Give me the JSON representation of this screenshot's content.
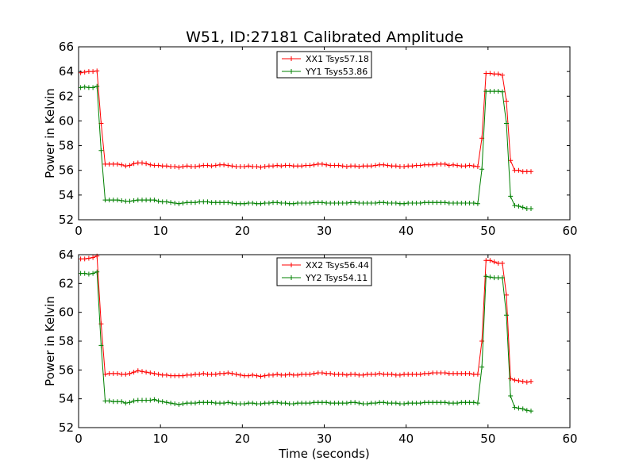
{
  "title": "W51, ID:27181 Calibrated Amplitude",
  "chart_data": [
    {
      "type": "line",
      "ylabel": "Power in Kelvin",
      "xlabel": "",
      "xlim": [
        0,
        60
      ],
      "ylim": [
        52,
        66
      ],
      "xticks": [
        "0",
        "10",
        "20",
        "30",
        "40",
        "50",
        "60"
      ],
      "yticks": [
        "52",
        "54",
        "56",
        "58",
        "60",
        "62",
        "64",
        "66"
      ],
      "legend_position": "top-center",
      "series": [
        {
          "name": "XX1 Tsys57.18",
          "color": "#ff0000",
          "x": [
            0.25,
            0.75,
            1.25,
            1.75,
            2.25,
            2.75,
            3.25,
            3.75,
            4.25,
            4.75,
            5.25,
            5.75,
            6.25,
            6.75,
            7.25,
            7.75,
            8.25,
            8.75,
            9.25,
            9.75,
            10.25,
            10.75,
            11.25,
            11.75,
            12.25,
            12.75,
            13.25,
            13.75,
            14.25,
            14.75,
            15.25,
            15.75,
            16.25,
            16.75,
            17.25,
            17.75,
            18.25,
            18.75,
            19.25,
            19.75,
            20.25,
            20.75,
            21.25,
            21.75,
            22.25,
            22.75,
            23.25,
            23.75,
            24.25,
            24.75,
            25.25,
            25.75,
            26.25,
            26.75,
            27.25,
            27.75,
            28.25,
            28.75,
            29.25,
            29.75,
            30.25,
            30.75,
            31.25,
            31.75,
            32.25,
            32.75,
            33.25,
            33.75,
            34.25,
            34.75,
            35.25,
            35.75,
            36.25,
            36.75,
            37.25,
            37.75,
            38.25,
            38.75,
            39.25,
            39.75,
            40.25,
            40.75,
            41.25,
            41.75,
            42.25,
            42.75,
            43.25,
            43.75,
            44.25,
            44.75,
            45.25,
            45.75,
            46.25,
            46.75,
            47.25,
            47.75,
            48.25,
            48.75,
            49.25,
            49.75,
            50.25,
            50.75,
            51.25,
            51.75,
            52.25,
            52.75,
            53.25,
            53.75,
            54.25,
            54.75,
            55.25
          ],
          "y": [
            63.9,
            63.95,
            64.0,
            64.0,
            64.05,
            59.8,
            56.5,
            56.5,
            56.5,
            56.5,
            56.45,
            56.35,
            56.4,
            56.55,
            56.6,
            56.6,
            56.55,
            56.45,
            56.4,
            56.4,
            56.35,
            56.35,
            56.3,
            56.3,
            56.25,
            56.3,
            56.35,
            56.3,
            56.3,
            56.35,
            56.4,
            56.4,
            56.35,
            56.4,
            56.45,
            56.45,
            56.4,
            56.35,
            56.3,
            56.3,
            56.3,
            56.35,
            56.3,
            56.3,
            56.25,
            56.3,
            56.35,
            56.35,
            56.4,
            56.35,
            56.4,
            56.4,
            56.35,
            56.35,
            56.35,
            56.4,
            56.4,
            56.45,
            56.5,
            56.5,
            56.45,
            56.4,
            56.4,
            56.4,
            56.35,
            56.3,
            56.35,
            56.35,
            56.3,
            56.35,
            56.35,
            56.35,
            56.4,
            56.45,
            56.45,
            56.4,
            56.35,
            56.35,
            56.3,
            56.3,
            56.35,
            56.35,
            56.4,
            56.4,
            56.45,
            56.45,
            56.45,
            56.5,
            56.5,
            56.5,
            56.4,
            56.45,
            56.4,
            56.35,
            56.35,
            56.4,
            56.35,
            56.3,
            58.6,
            63.85,
            63.85,
            63.8,
            63.8,
            63.7,
            61.6,
            56.8,
            56.0,
            56.0,
            55.9,
            55.9,
            55.9
          ]
        },
        {
          "name": "YY1 Tsys53.86",
          "color": "#008000",
          "x": [
            0.25,
            0.75,
            1.25,
            1.75,
            2.25,
            2.75,
            3.25,
            3.75,
            4.25,
            4.75,
            5.25,
            5.75,
            6.25,
            6.75,
            7.25,
            7.75,
            8.25,
            8.75,
            9.25,
            9.75,
            10.25,
            10.75,
            11.25,
            11.75,
            12.25,
            12.75,
            13.25,
            13.75,
            14.25,
            14.75,
            15.25,
            15.75,
            16.25,
            16.75,
            17.25,
            17.75,
            18.25,
            18.75,
            19.25,
            19.75,
            20.25,
            20.75,
            21.25,
            21.75,
            22.25,
            22.75,
            23.25,
            23.75,
            24.25,
            24.75,
            25.25,
            25.75,
            26.25,
            26.75,
            27.25,
            27.75,
            28.25,
            28.75,
            29.25,
            29.75,
            30.25,
            30.75,
            31.25,
            31.75,
            32.25,
            32.75,
            33.25,
            33.75,
            34.25,
            34.75,
            35.25,
            35.75,
            36.25,
            36.75,
            37.25,
            37.75,
            38.25,
            38.75,
            39.25,
            39.75,
            40.25,
            40.75,
            41.25,
            41.75,
            42.25,
            42.75,
            43.25,
            43.75,
            44.25,
            44.75,
            45.25,
            45.75,
            46.25,
            46.75,
            47.25,
            47.75,
            48.25,
            48.75,
            49.25,
            49.75,
            50.25,
            50.75,
            51.25,
            51.75,
            52.25,
            52.75,
            53.25,
            53.75,
            54.25,
            54.75,
            55.25
          ],
          "y": [
            62.7,
            62.75,
            62.7,
            62.7,
            62.8,
            57.6,
            53.6,
            53.6,
            53.6,
            53.6,
            53.55,
            53.5,
            53.5,
            53.55,
            53.6,
            53.6,
            53.6,
            53.6,
            53.6,
            53.5,
            53.45,
            53.45,
            53.4,
            53.35,
            53.3,
            53.35,
            53.4,
            53.4,
            53.4,
            53.45,
            53.45,
            53.45,
            53.4,
            53.4,
            53.4,
            53.4,
            53.4,
            53.35,
            53.3,
            53.3,
            53.3,
            53.35,
            53.35,
            53.3,
            53.3,
            53.35,
            53.35,
            53.4,
            53.4,
            53.35,
            53.35,
            53.3,
            53.3,
            53.35,
            53.35,
            53.35,
            53.35,
            53.4,
            53.4,
            53.4,
            53.35,
            53.35,
            53.35,
            53.35,
            53.35,
            53.35,
            53.4,
            53.4,
            53.35,
            53.35,
            53.35,
            53.35,
            53.35,
            53.4,
            53.4,
            53.35,
            53.35,
            53.35,
            53.3,
            53.3,
            53.35,
            53.35,
            53.35,
            53.35,
            53.4,
            53.4,
            53.4,
            53.4,
            53.4,
            53.4,
            53.35,
            53.35,
            53.35,
            53.35,
            53.35,
            53.35,
            53.35,
            53.3,
            56.1,
            62.4,
            62.4,
            62.4,
            62.4,
            62.35,
            59.8,
            53.9,
            53.15,
            53.1,
            53.0,
            52.9,
            52.9
          ]
        }
      ]
    },
    {
      "type": "line",
      "ylabel": "Power in Kelvin",
      "xlabel": "Time (seconds)",
      "xlim": [
        0,
        60
      ],
      "ylim": [
        52,
        64
      ],
      "xticks": [
        "0",
        "10",
        "20",
        "30",
        "40",
        "50",
        "60"
      ],
      "yticks": [
        "52",
        "54",
        "56",
        "58",
        "60",
        "62",
        "64"
      ],
      "legend_position": "top-center",
      "series": [
        {
          "name": "XX2 Tsys56.44",
          "color": "#ff0000",
          "x": [
            0.25,
            0.75,
            1.25,
            1.75,
            2.25,
            2.75,
            3.25,
            3.75,
            4.25,
            4.75,
            5.25,
            5.75,
            6.25,
            6.75,
            7.25,
            7.75,
            8.25,
            8.75,
            9.25,
            9.75,
            10.25,
            10.75,
            11.25,
            11.75,
            12.25,
            12.75,
            13.25,
            13.75,
            14.25,
            14.75,
            15.25,
            15.75,
            16.25,
            16.75,
            17.25,
            17.75,
            18.25,
            18.75,
            19.25,
            19.75,
            20.25,
            20.75,
            21.25,
            21.75,
            22.25,
            22.75,
            23.25,
            23.75,
            24.25,
            24.75,
            25.25,
            25.75,
            26.25,
            26.75,
            27.25,
            27.75,
            28.25,
            28.75,
            29.25,
            29.75,
            30.25,
            30.75,
            31.25,
            31.75,
            32.25,
            32.75,
            33.25,
            33.75,
            34.25,
            34.75,
            35.25,
            35.75,
            36.25,
            36.75,
            37.25,
            37.75,
            38.25,
            38.75,
            39.25,
            39.75,
            40.25,
            40.75,
            41.25,
            41.75,
            42.25,
            42.75,
            43.25,
            43.75,
            44.25,
            44.75,
            45.25,
            45.75,
            46.25,
            46.75,
            47.25,
            47.75,
            48.25,
            48.75,
            49.25,
            49.75,
            50.25,
            50.75,
            51.25,
            51.75,
            52.25,
            52.75,
            53.25,
            53.75,
            54.25,
            54.75,
            55.25
          ],
          "y": [
            63.7,
            63.7,
            63.75,
            63.8,
            63.9,
            59.2,
            55.7,
            55.75,
            55.75,
            55.75,
            55.7,
            55.7,
            55.75,
            55.85,
            55.95,
            55.9,
            55.85,
            55.8,
            55.75,
            55.7,
            55.65,
            55.65,
            55.6,
            55.6,
            55.6,
            55.6,
            55.65,
            55.65,
            55.7,
            55.7,
            55.75,
            55.7,
            55.7,
            55.7,
            55.75,
            55.75,
            55.8,
            55.75,
            55.7,
            55.65,
            55.6,
            55.6,
            55.65,
            55.6,
            55.55,
            55.6,
            55.65,
            55.65,
            55.7,
            55.65,
            55.65,
            55.7,
            55.65,
            55.65,
            55.7,
            55.7,
            55.7,
            55.75,
            55.8,
            55.8,
            55.75,
            55.75,
            55.7,
            55.7,
            55.7,
            55.65,
            55.7,
            55.7,
            55.65,
            55.65,
            55.7,
            55.7,
            55.7,
            55.75,
            55.7,
            55.7,
            55.7,
            55.65,
            55.65,
            55.7,
            55.7,
            55.7,
            55.7,
            55.7,
            55.75,
            55.75,
            55.8,
            55.8,
            55.8,
            55.8,
            55.75,
            55.75,
            55.75,
            55.75,
            55.75,
            55.75,
            55.7,
            55.7,
            58.0,
            63.6,
            63.6,
            63.5,
            63.4,
            63.4,
            61.2,
            55.4,
            55.3,
            55.25,
            55.2,
            55.15,
            55.2
          ]
        },
        {
          "name": "YY2 Tsys54.11",
          "color": "#008000",
          "x": [
            0.25,
            0.75,
            1.25,
            1.75,
            2.25,
            2.75,
            3.25,
            3.75,
            4.25,
            4.75,
            5.25,
            5.75,
            6.25,
            6.75,
            7.25,
            7.75,
            8.25,
            8.75,
            9.25,
            9.75,
            10.25,
            10.75,
            11.25,
            11.75,
            12.25,
            12.75,
            13.25,
            13.75,
            14.25,
            14.75,
            15.25,
            15.75,
            16.25,
            16.75,
            17.25,
            17.75,
            18.25,
            18.75,
            19.25,
            19.75,
            20.25,
            20.75,
            21.25,
            21.75,
            22.25,
            22.75,
            23.25,
            23.75,
            24.25,
            24.75,
            25.25,
            25.75,
            26.25,
            26.75,
            27.25,
            27.75,
            28.25,
            28.75,
            29.25,
            29.75,
            30.25,
            30.75,
            31.25,
            31.75,
            32.25,
            32.75,
            33.25,
            33.75,
            34.25,
            34.75,
            35.25,
            35.75,
            36.25,
            36.75,
            37.25,
            37.75,
            38.25,
            38.75,
            39.25,
            39.75,
            40.25,
            40.75,
            41.25,
            41.75,
            42.25,
            42.75,
            43.25,
            43.75,
            44.25,
            44.75,
            45.25,
            45.75,
            46.25,
            46.75,
            47.25,
            47.75,
            48.25,
            48.75,
            49.25,
            49.75,
            50.25,
            50.75,
            51.25,
            51.75,
            52.25,
            52.75,
            53.25,
            53.75,
            54.25,
            54.75,
            55.25
          ],
          "y": [
            62.7,
            62.7,
            62.65,
            62.7,
            62.8,
            57.7,
            53.85,
            53.85,
            53.8,
            53.8,
            53.8,
            53.7,
            53.75,
            53.85,
            53.9,
            53.9,
            53.9,
            53.9,
            53.95,
            53.85,
            53.8,
            53.75,
            53.7,
            53.65,
            53.6,
            53.65,
            53.7,
            53.7,
            53.7,
            53.75,
            53.75,
            53.75,
            53.75,
            53.7,
            53.7,
            53.7,
            53.75,
            53.7,
            53.65,
            53.65,
            53.65,
            53.7,
            53.7,
            53.65,
            53.65,
            53.7,
            53.7,
            53.75,
            53.75,
            53.7,
            53.7,
            53.65,
            53.65,
            53.7,
            53.7,
            53.7,
            53.7,
            53.75,
            53.75,
            53.75,
            53.75,
            53.7,
            53.7,
            53.7,
            53.7,
            53.7,
            53.75,
            53.75,
            53.7,
            53.65,
            53.65,
            53.7,
            53.7,
            53.75,
            53.75,
            53.7,
            53.7,
            53.7,
            53.65,
            53.65,
            53.7,
            53.7,
            53.7,
            53.7,
            53.75,
            53.75,
            53.75,
            53.75,
            53.75,
            53.75,
            53.7,
            53.7,
            53.7,
            53.75,
            53.75,
            53.75,
            53.75,
            53.7,
            56.2,
            62.5,
            62.45,
            62.4,
            62.4,
            62.4,
            59.8,
            54.2,
            53.4,
            53.35,
            53.3,
            53.2,
            53.15
          ]
        }
      ]
    }
  ]
}
